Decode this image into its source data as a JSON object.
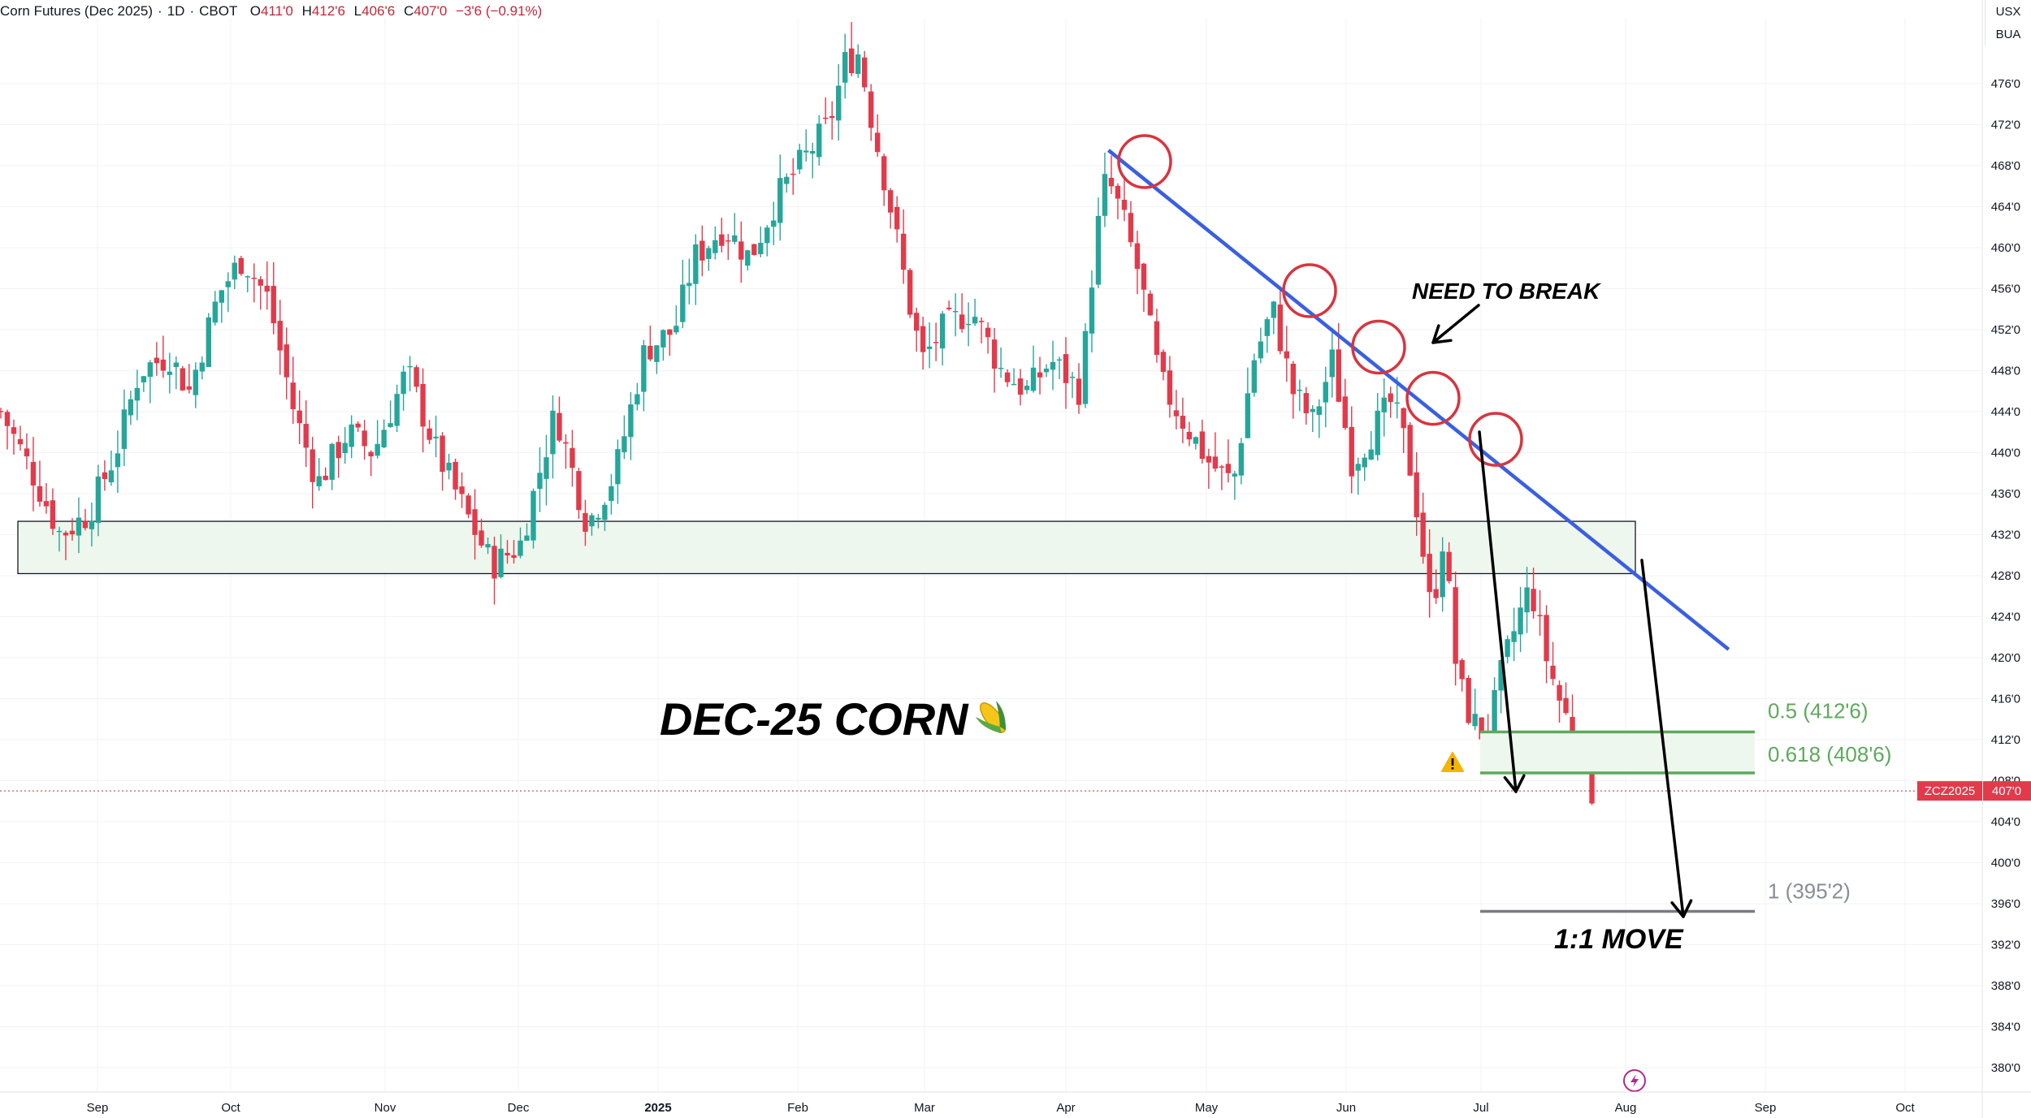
{
  "header": {
    "symbol": "Corn Futures (Dec 2025)",
    "interval": "1D",
    "exchange": "CBOT",
    "open_label": "O",
    "open": "411'0",
    "high_label": "H",
    "high": "412'6",
    "low_label": "L",
    "low": "406'6",
    "close_label": "C",
    "close": "407'0",
    "change": "−3'6 (−0.91%)"
  },
  "axis_badges": {
    "currency": "USX",
    "unit": "BUA"
  },
  "price_tag": {
    "symbol": "ZCZ2025",
    "price": "407'0"
  },
  "colors": {
    "up": "#26a69a",
    "down": "#e23a4b",
    "trendline": "#3a5fe0",
    "circle": "#d7353f",
    "zone_fill": "#eef7ee",
    "fib_line": "#5fa95d",
    "move_line": "#787b86"
  },
  "annotations": {
    "title": "DEC-25 CORN",
    "title_icon": "corn-emoji",
    "need_to_break": "NEED TO BREAK",
    "one_to_one": "1:1 MOVE",
    "fib_05": "0.5 (412'6)",
    "fib_0618": "0.618 (408'6)",
    "fib_1": "1 (395'2)",
    "warning_icon": "warning-icon",
    "flash_icon": "lightning-icon"
  },
  "chart_data": {
    "type": "candlestick",
    "y_ticks": [
      "476'0",
      "472'0",
      "468'0",
      "464'0",
      "460'0",
      "456'0",
      "452'0",
      "448'0",
      "444'0",
      "440'0",
      "436'0",
      "432'0",
      "428'0",
      "424'0",
      "420'0",
      "416'0",
      "412'0",
      "408'0",
      "404'0",
      "400'0",
      "396'0",
      "392'0",
      "388'0",
      "384'0",
      "380'0"
    ],
    "ylim": [
      379,
      482
    ],
    "x_ticks": [
      "Sep",
      "Oct",
      "Nov",
      "Dec",
      "2025",
      "Feb",
      "Mar",
      "Apr",
      "May",
      "Jun",
      "Jul",
      "Aug",
      "Sep",
      "Oct"
    ],
    "bold_x_ticks": [
      "2025"
    ],
    "last_price": 407,
    "support_zone": {
      "from": 428.2,
      "to": 433.3
    },
    "fib_levels": [
      {
        "label": "0.5 (412'6)",
        "value": 412.75
      },
      {
        "label": "0.618 (408'6)",
        "value": 408.75
      },
      {
        "label": "1 (395'2)",
        "value": 395.25
      }
    ],
    "trendline_points": [
      [
        0.559,
        469.5
      ],
      [
        0.872,
        420.8
      ]
    ],
    "touch_circle_prices": [
      468.4,
      455.8,
      450.3,
      445.3,
      441.3
    ],
    "close_path": [
      [
        0.0,
        444.0
      ],
      [
        0.016,
        438.0
      ],
      [
        0.03,
        432.0
      ],
      [
        0.044,
        434.0
      ],
      [
        0.058,
        440.0
      ],
      [
        0.07,
        448.0
      ],
      [
        0.085,
        449.5
      ],
      [
        0.095,
        446.0
      ],
      [
        0.11,
        455.5
      ],
      [
        0.122,
        459.0
      ],
      [
        0.135,
        455.0
      ],
      [
        0.148,
        444.0
      ],
      [
        0.16,
        437.0
      ],
      [
        0.175,
        442.0
      ],
      [
        0.188,
        440.0
      ],
      [
        0.205,
        448.0
      ],
      [
        0.22,
        440.0
      ],
      [
        0.235,
        434.0
      ],
      [
        0.248,
        429.0
      ],
      [
        0.262,
        431.0
      ],
      [
        0.28,
        444.0
      ],
      [
        0.296,
        433.0
      ],
      [
        0.31,
        438.0
      ],
      [
        0.325,
        450.0
      ],
      [
        0.34,
        452.0
      ],
      [
        0.35,
        459.0
      ],
      [
        0.365,
        462.0
      ],
      [
        0.378,
        459.0
      ],
      [
        0.392,
        465.0
      ],
      [
        0.403,
        468.0
      ],
      [
        0.418,
        472.0
      ],
      [
        0.426,
        478.0
      ],
      [
        0.433,
        479.0
      ],
      [
        0.44,
        472.0
      ],
      [
        0.448,
        465.0
      ],
      [
        0.458,
        455.0
      ],
      [
        0.465,
        449.0
      ],
      [
        0.475,
        452.0
      ],
      [
        0.49,
        454.0
      ],
      [
        0.505,
        448.0
      ],
      [
        0.518,
        446.0
      ],
      [
        0.53,
        449.0
      ],
      [
        0.545,
        446.0
      ],
      [
        0.552,
        460.0
      ],
      [
        0.558,
        467.0
      ],
      [
        0.566,
        463.0
      ],
      [
        0.575,
        457.0
      ],
      [
        0.585,
        447.0
      ],
      [
        0.597,
        443.0
      ],
      [
        0.61,
        439.0
      ],
      [
        0.622,
        437.0
      ],
      [
        0.632,
        449.0
      ],
      [
        0.642,
        454.0
      ],
      [
        0.652,
        446.0
      ],
      [
        0.662,
        443.0
      ],
      [
        0.672,
        449.0
      ],
      [
        0.682,
        439.0
      ],
      [
        0.692,
        442.0
      ],
      [
        0.702,
        445.0
      ],
      [
        0.71,
        440.0
      ],
      [
        0.716,
        433.0
      ],
      [
        0.722,
        424.0
      ],
      [
        0.728,
        432.0
      ],
      [
        0.735,
        418.0
      ],
      [
        0.742,
        414.0
      ],
      [
        0.75,
        412.0
      ],
      [
        0.758,
        419.0
      ],
      [
        0.766,
        424.0
      ],
      [
        0.772,
        427.0
      ],
      [
        0.78,
        420.0
      ],
      [
        0.788,
        415.0
      ],
      [
        0.796,
        412.0
      ],
      [
        0.803,
        407.0
      ]
    ]
  }
}
